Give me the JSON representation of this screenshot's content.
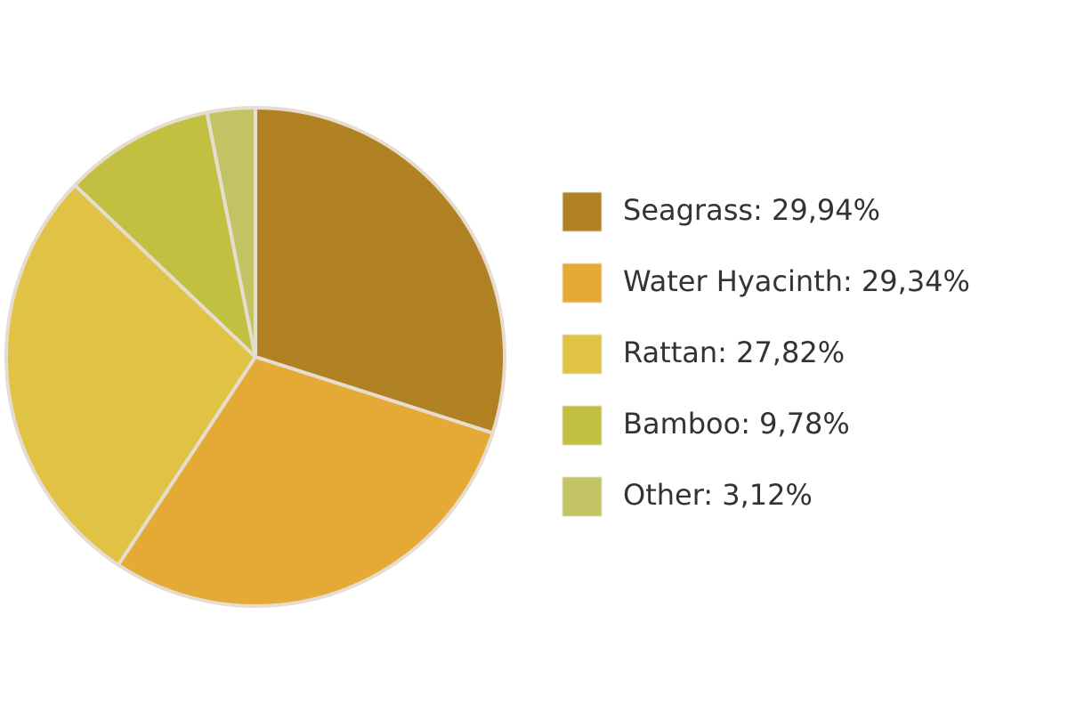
{
  "chart_data": {
    "type": "pie",
    "categories": [
      "Seagrass: 29,94%",
      "Water Hyacinth: 29,34%",
      "Rattan: 27,82%",
      "Bamboo: 9,78%",
      "Other: 3,12%"
    ],
    "values": [
      29.94,
      29.34,
      27.82,
      9.78,
      3.12
    ],
    "colors": [
      "#b08224",
      "#e5aa35",
      "#e0c244",
      "#c2c040",
      "#c2c464"
    ],
    "legend": "right"
  }
}
